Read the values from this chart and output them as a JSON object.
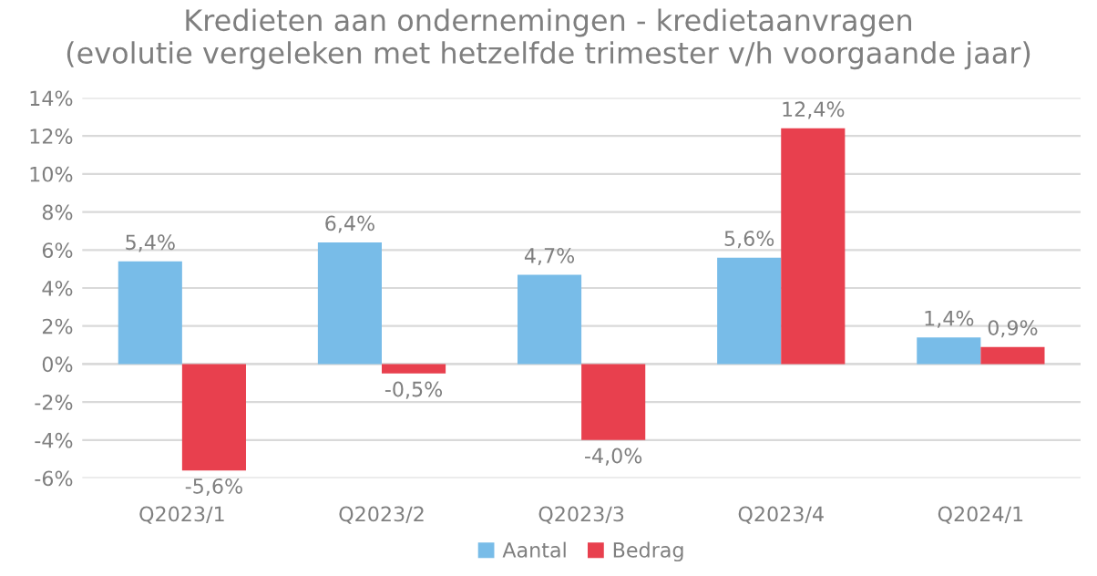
{
  "chart_data": {
    "type": "bar",
    "title": "Kredieten aan ondernemingen - kredietaanvragen\n(evolutie vergeleken met hetzelfde trimester v/h voorgaande jaar)",
    "categories": [
      "Q2023/1",
      "Q2023/2",
      "Q2023/3",
      "Q2023/4",
      "Q2024/1"
    ],
    "series": [
      {
        "name": "Aantal",
        "color": "#78bce8",
        "values": [
          5.4,
          6.4,
          4.7,
          5.6,
          1.4
        ],
        "value_labels": [
          "5,4%",
          "6,4%",
          "4,7%",
          "5,6%",
          "1,4%"
        ]
      },
      {
        "name": "Bedrag",
        "color": "#e8404e",
        "values": [
          -5.6,
          -0.5,
          -4.0,
          12.4,
          0.9
        ],
        "value_labels": [
          "-5,6%",
          "-0,5%",
          "-4,0%",
          "12,4%",
          "0,9%"
        ]
      }
    ],
    "ylim": [
      -6,
      14
    ],
    "yticks": [
      {
        "value": -6,
        "label": "-6%"
      },
      {
        "value": -4,
        "label": "-4%"
      },
      {
        "value": -2,
        "label": "-2%"
      },
      {
        "value": 0,
        "label": "0%"
      },
      {
        "value": 2,
        "label": "2%"
      },
      {
        "value": 4,
        "label": "4%"
      },
      {
        "value": 6,
        "label": "6%"
      },
      {
        "value": 8,
        "label": "8%"
      },
      {
        "value": 10,
        "label": "10%"
      },
      {
        "value": 12,
        "label": "12%"
      },
      {
        "value": 14,
        "label": "14%"
      }
    ],
    "grid": "y",
    "legend": "bottom"
  }
}
